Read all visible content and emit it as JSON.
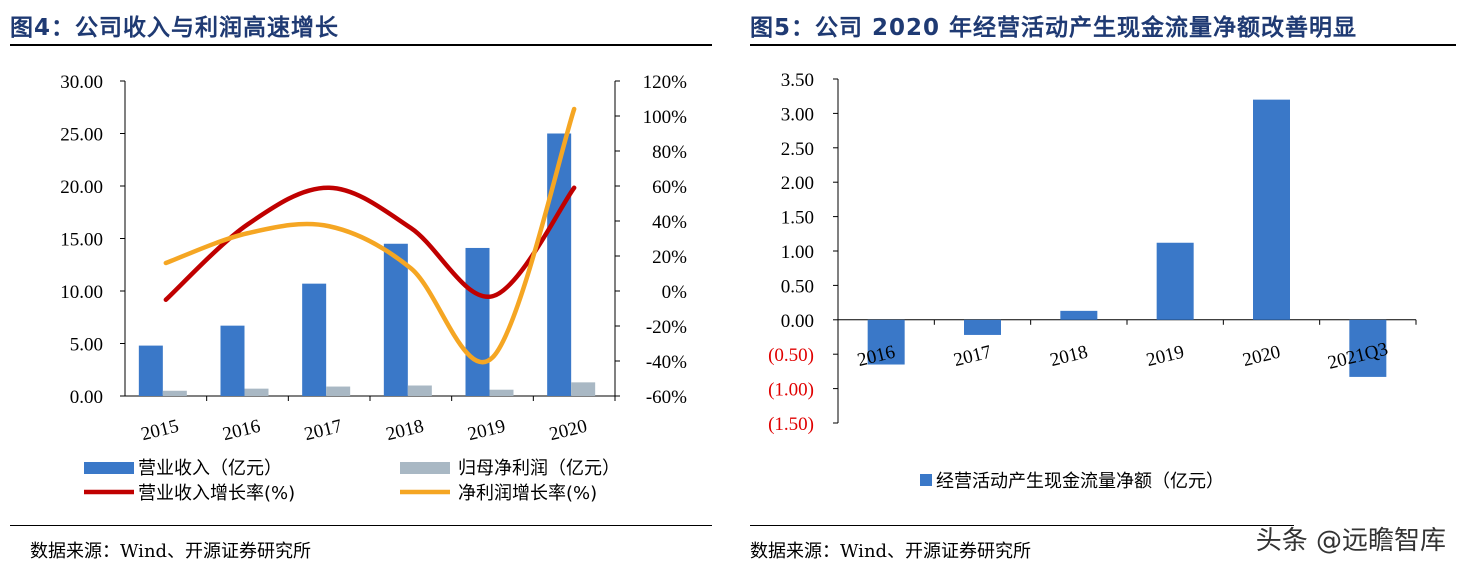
{
  "left": {
    "title": "图4：公司收入与利润高速增长",
    "source": "数据来源：Wind、开源证券研究所",
    "legend": {
      "revenue": "营业收入（亿元）",
      "net_profit": "归母净利润（亿元）",
      "revenue_growth": "营业收入增长率(%)",
      "profit_growth": "净利润增长率(%)"
    }
  },
  "right": {
    "title": "图5：公司 2020 年经营活动产生现金流量净额改善明显",
    "source": "数据来源：Wind、开源证券研究所",
    "legend": {
      "cashflow": "经营活动产生现金流量净额（亿元）"
    }
  },
  "watermark": "头条 @远瞻智库",
  "chart_data": [
    {
      "type": "bar+line",
      "title": "图4：公司收入与利润高速增长",
      "categories": [
        "2015",
        "2016",
        "2017",
        "2018",
        "2019",
        "2020"
      ],
      "y_left": {
        "ylim": [
          0,
          30
        ],
        "ticks": [
          "0.00",
          "5.00",
          "10.00",
          "15.00",
          "20.00",
          "25.00",
          "30.00"
        ]
      },
      "y_right": {
        "ylim": [
          -60,
          120
        ],
        "ticks": [
          "-60%",
          "-40%",
          "-20%",
          "0%",
          "20%",
          "40%",
          "60%",
          "80%",
          "100%",
          "120%"
        ]
      },
      "series": [
        {
          "name": "营业收入（亿元）",
          "type": "bar",
          "axis": "left",
          "color": "#3a78c8",
          "values": [
            4.8,
            6.7,
            10.7,
            14.5,
            14.1,
            25.0
          ]
        },
        {
          "name": "归母净利润（亿元）",
          "type": "bar",
          "axis": "left",
          "color": "#a9b8c4",
          "values": [
            0.5,
            0.7,
            0.9,
            1.0,
            0.6,
            1.3
          ]
        },
        {
          "name": "营业收入增长率(%)",
          "type": "line",
          "axis": "right",
          "color": "#c00000",
          "values": [
            -5,
            38,
            59,
            36,
            -3,
            59
          ]
        },
        {
          "name": "净利润增长率(%)",
          "type": "line",
          "axis": "right",
          "color": "#f5a623",
          "values": [
            16,
            33,
            37,
            13,
            -38,
            104
          ]
        }
      ],
      "grid": false,
      "legend_position": "bottom"
    },
    {
      "type": "bar",
      "title": "图5：公司 2020 年经营活动产生现金流量净额改善明显",
      "categories": [
        "2016",
        "2017",
        "2018",
        "2019",
        "2020",
        "2021Q3"
      ],
      "ylim": [
        -1.5,
        3.5
      ],
      "ticks": [
        "(1.50)",
        "(1.00)",
        "(0.50)",
        "0.00",
        "0.50",
        "1.00",
        "1.50",
        "2.00",
        "2.50",
        "3.00",
        "3.50"
      ],
      "series": [
        {
          "name": "经营活动产生现金流量净额（亿元）",
          "color": "#3a78c8",
          "values": [
            -0.65,
            -0.22,
            0.13,
            1.12,
            3.2,
            -0.83
          ]
        }
      ],
      "negative_label_color": "#e00000",
      "grid": false,
      "legend_position": "bottom"
    }
  ]
}
